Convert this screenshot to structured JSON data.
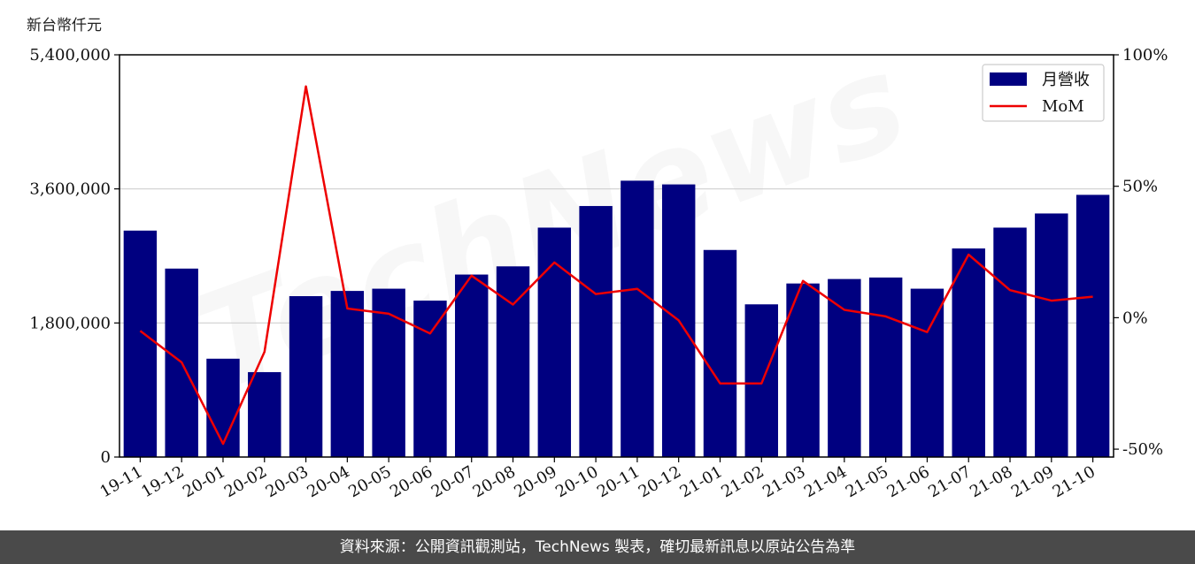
{
  "y_unit_label": "新台幣仟元",
  "footer_text": "資料來源：公開資訊觀測站，TechNews 製表，確切最新訊息以原站公告為準",
  "watermark_text": "TechNews",
  "chart_data": {
    "type": "bar",
    "categories": [
      "19-11",
      "19-12",
      "20-01",
      "20-02",
      "20-03",
      "20-04",
      "20-05",
      "20-06",
      "20-07",
      "20-08",
      "20-09",
      "20-10",
      "20-11",
      "20-12",
      "21-01",
      "21-02",
      "21-03",
      "21-04",
      "21-05",
      "21-06",
      "21-07",
      "21-08",
      "21-09",
      "21-10"
    ],
    "series": [
      {
        "name": "月營收",
        "axis": "left",
        "type": "bar",
        "color": "#000080",
        "values": [
          3040000,
          2530000,
          1320000,
          1140000,
          2160000,
          2230000,
          2260000,
          2100000,
          2450000,
          2560000,
          3080000,
          3370000,
          3710000,
          3660000,
          2780000,
          2050000,
          2330000,
          2390000,
          2410000,
          2260000,
          2800000,
          3080000,
          3270000,
          3520000
        ]
      },
      {
        "name": "MoM",
        "axis": "right",
        "type": "line",
        "color": "#ee0000",
        "values": [
          -5,
          -17,
          -48,
          -13,
          88,
          3.5,
          1.5,
          -6,
          16,
          5,
          21,
          9,
          11,
          -1,
          -25,
          -25,
          14,
          3,
          0.5,
          -5.5,
          24,
          10.5,
          6.5,
          8
        ]
      }
    ],
    "y_left": {
      "ylim": [
        0,
        5400000
      ],
      "ticks": [
        "0",
        "1,800,000",
        "3,600,000",
        "5,400,000"
      ],
      "tick_values": [
        0,
        1800000,
        3600000,
        5400000
      ]
    },
    "y_right": {
      "ylim": [
        -53,
        100
      ],
      "ticks": [
        "-50%",
        "0%",
        "50%",
        "100%"
      ],
      "tick_values": [
        -50,
        0,
        50,
        100
      ]
    },
    "grid": "horizontal",
    "legend_position": "top-right"
  }
}
